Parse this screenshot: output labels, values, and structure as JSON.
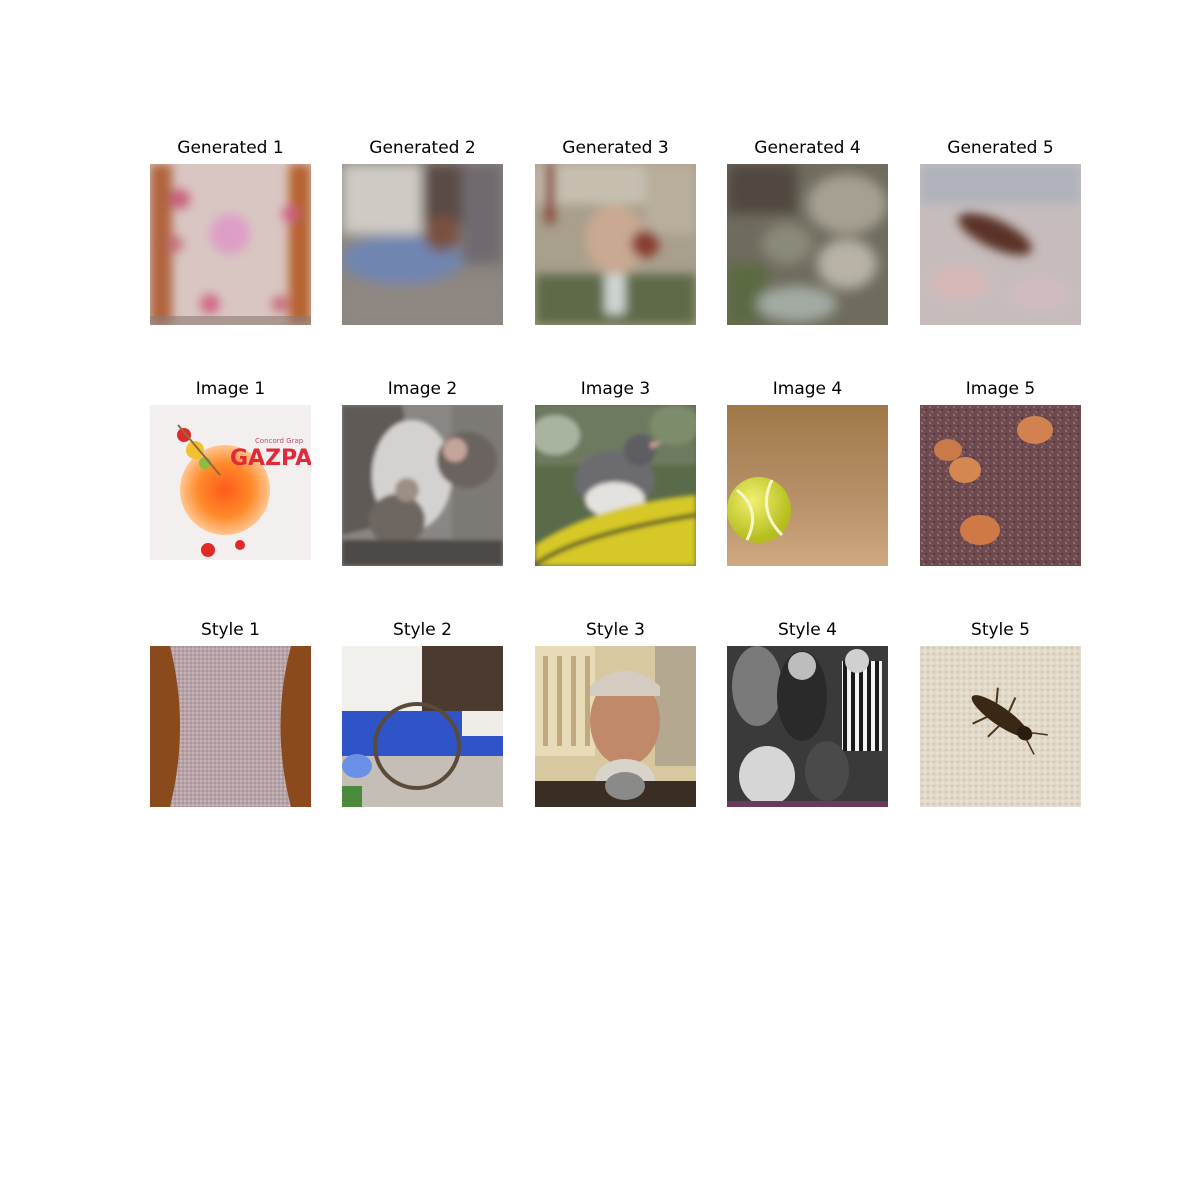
{
  "rows": [
    {
      "titles": [
        "Generated 1",
        "Generated 2",
        "Generated 3",
        "Generated 4",
        "Generated 5"
      ]
    },
    {
      "titles": [
        "Image 1",
        "Image 2",
        "Image 3",
        "Image 4",
        "Image 5"
      ]
    },
    {
      "titles": [
        "Style 1",
        "Style 2",
        "Style 3",
        "Style 4",
        "Style 5"
      ]
    }
  ],
  "image1_text": "GAZPACH",
  "image1_small_text": "Concord Grap"
}
